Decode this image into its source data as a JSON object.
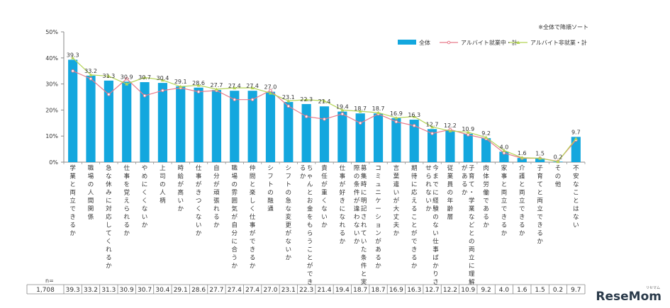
{
  "note": "※全体で降順ソート",
  "logo": "ReseMom",
  "logo_sub": "リセマム",
  "colors": {
    "bar": "#13a7de",
    "line_working": "#e87a8a",
    "line_not_working": "#b4d455",
    "axis": "#888888",
    "text": "#333333"
  },
  "chart_data": {
    "type": "bar",
    "title": "",
    "ylim": [
      0,
      50
    ],
    "yticks": [
      "0%",
      "10%",
      "20%",
      "30%",
      "40%",
      "50%"
    ],
    "ytick_values": [
      0,
      10,
      20,
      30,
      40,
      50
    ],
    "legend": [
      "全体",
      "アルバイト就業中・計",
      "アルバイト非就業・計"
    ],
    "categories": [
      "学業と両立できるか",
      "職場の人間関係",
      "急な休みに対応してくれるか",
      "仕事を覚えられるか",
      "やめにくくないか",
      "上司の人柄",
      "時給が高いか",
      "仕事がきつくないか",
      "自分が頑張れるか",
      "職場の雰囲気が自分に合うか",
      "仲間と楽しく仕事ができるか",
      "シフトの融通",
      "シフトの急な変更がないか",
      "ちゃんとお金をもらうことができるか",
      "責任が重くないか",
      "仕事が好きになれるか",
      "募集時に明記されていた条件と実際の条件が違わないか",
      "コミュニケーションがあるか",
      "言葉遣いが大丈夫か",
      "期待に応えることができるか",
      "今までに経験のない仕事ばかりさせられないか",
      "従業員の年齢層",
      "子育て・学業などとの両立に理解があるか",
      "肉体労働であるか",
      "家事と両立できるか",
      "介護と両立できるか",
      "子育てと両立できるか",
      "その他",
      "不安なことはない"
    ],
    "series": [
      {
        "name": "全体",
        "type": "bar",
        "values": [
          39.3,
          33.2,
          31.3,
          30.9,
          30.7,
          30.4,
          29.1,
          28.6,
          27.7,
          27.4,
          27.4,
          27.0,
          23.1,
          22.3,
          21.4,
          19.4,
          18.7,
          18.7,
          16.9,
          16.3,
          12.7,
          12.2,
          10.9,
          9.2,
          4.0,
          1.6,
          1.5,
          0.2,
          9.7
        ]
      },
      {
        "name": "アルバイト就業中・計",
        "type": "line",
        "values": [
          35.0,
          32.0,
          26.0,
          32.0,
          25.5,
          27.5,
          28.5,
          27.0,
          27.5,
          24.0,
          24.0,
          27.5,
          21.5,
          17.5,
          16.5,
          18.5,
          15.0,
          18.5,
          15.5,
          14.0,
          11.0,
          12.5,
          10.5,
          9.0,
          3.5,
          1.5,
          1.5,
          0.3,
          8.5
        ]
      },
      {
        "name": "アルバイト非就業・計",
        "type": "line",
        "values": [
          40.0,
          33.5,
          33.0,
          30.0,
          32.5,
          31.5,
          29.0,
          29.5,
          28.0,
          28.5,
          28.5,
          26.5,
          23.5,
          24.0,
          23.5,
          20.0,
          19.5,
          19.0,
          17.0,
          17.5,
          13.5,
          12.0,
          11.5,
          9.5,
          4.5,
          1.7,
          1.5,
          0.2,
          9.0
        ]
      }
    ],
    "table": {
      "n_label": "n=",
      "n_value": "1,708",
      "values": [
        "39.3",
        "33.2",
        "31.3",
        "30.9",
        "30.7",
        "30.4",
        "29.1",
        "28.6",
        "27.7",
        "27.4",
        "27.4",
        "27.0",
        "23.1",
        "22.3",
        "21.4",
        "19.4",
        "18.7",
        "18.7",
        "16.9",
        "16.3",
        "12.7",
        "12.2",
        "10.9",
        "9.2",
        "4.0",
        "1.6",
        "1.5",
        "0.2",
        "9.7"
      ]
    }
  }
}
